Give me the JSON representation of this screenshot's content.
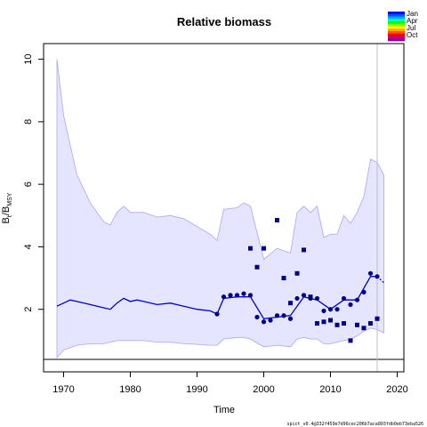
{
  "chart_data": {
    "type": "line",
    "title": "Relative biomass",
    "xlabel": "Time",
    "ylabel_main": "B",
    "ylabel_sub1": "t",
    "ylabel_sep": "/B",
    "ylabel_sub2": "MSY",
    "xlim": [
      1967,
      2021
    ],
    "ylim": [
      0,
      10.5
    ],
    "xticks": [
      1970,
      1980,
      1990,
      2000,
      2010,
      2020
    ],
    "yticks": [
      2,
      4,
      6,
      8,
      10
    ],
    "reference_line_y": 0.4,
    "vertical_line_x": 2017,
    "legend": [
      "Jan",
      "Apr",
      "Jul",
      "Oct"
    ],
    "legend_position": "top-right",
    "footer": "spict_v0.4@332f459e7d96cec206b7aca803fdb0eb73eba526",
    "colors": {
      "band": "#e5e5ff",
      "band_edge": "#a6a6ff",
      "line": "#0000cc",
      "points": "#00008b",
      "ref": "#000000",
      "vline": "#bfbfbf"
    },
    "series": [
      {
        "role": "estimate",
        "x": [
          1969,
          1970,
          1971,
          1972,
          1974,
          1976,
          1977,
          1978,
          1979,
          1980,
          1981,
          1982,
          1984,
          1986,
          1988,
          1990,
          1992,
          1993,
          1994,
          1996,
          1998,
          2000,
          2002,
          2004,
          2006,
          2008,
          2010,
          2012,
          2014,
          2016,
          2017
        ],
        "y": [
          2.1,
          2.2,
          2.3,
          2.25,
          2.15,
          2.05,
          2.0,
          2.2,
          2.35,
          2.25,
          2.3,
          2.25,
          2.15,
          2.2,
          2.1,
          2.0,
          1.95,
          1.85,
          2.35,
          2.4,
          2.4,
          1.7,
          1.75,
          1.8,
          2.4,
          2.3,
          2.0,
          2.3,
          2.3,
          3.05,
          3.05
        ]
      },
      {
        "role": "forecast",
        "x": [
          2017,
          2018
        ],
        "y": [
          3.05,
          2.85
        ]
      },
      {
        "role": "ci_upper",
        "x": [
          1969,
          1970,
          1972,
          1974,
          1976,
          1977,
          1978,
          1979,
          1980,
          1982,
          1984,
          1986,
          1988,
          1990,
          1992,
          1993,
          1994,
          1996,
          1997,
          1998,
          2000,
          2002,
          2004,
          2005,
          2006,
          2007,
          2008,
          2009,
          2010,
          2011,
          2012,
          2013,
          2014,
          2015,
          2016,
          2017,
          2018
        ],
        "y": [
          10.0,
          8.2,
          6.3,
          5.4,
          4.8,
          4.7,
          5.1,
          5.3,
          5.1,
          5.1,
          4.95,
          5.0,
          4.9,
          4.65,
          4.4,
          4.2,
          5.2,
          5.25,
          5.4,
          5.3,
          3.6,
          3.95,
          3.8,
          5.1,
          5.3,
          5.1,
          5.3,
          4.3,
          4.4,
          4.4,
          5.0,
          4.75,
          5.1,
          5.6,
          6.8,
          6.7,
          6.3
        ]
      },
      {
        "role": "ci_lower",
        "x": [
          1969,
          1970,
          1972,
          1974,
          1976,
          1977,
          1978,
          1979,
          1980,
          1982,
          1984,
          1986,
          1988,
          1990,
          1992,
          1993,
          1994,
          1996,
          1997,
          1998,
          2000,
          2002,
          2004,
          2005,
          2006,
          2007,
          2008,
          2009,
          2010,
          2011,
          2012,
          2013,
          2014,
          2015,
          2016,
          2017,
          2018
        ],
        "y": [
          0.45,
          0.7,
          0.85,
          0.9,
          0.9,
          0.95,
          1.0,
          1.0,
          1.0,
          1.0,
          0.95,
          0.95,
          0.9,
          0.88,
          0.85,
          0.85,
          1.05,
          1.1,
          1.1,
          1.05,
          0.8,
          0.85,
          0.8,
          1.05,
          1.1,
          1.05,
          1.05,
          0.9,
          0.9,
          0.95,
          1.0,
          1.05,
          1.15,
          1.3,
          1.4,
          1.35,
          1.25
        ]
      },
      {
        "role": "observations_index1",
        "x": [
          1993,
          1994,
          1995,
          1996,
          1997,
          1998,
          1999,
          2000,
          2001,
          2002,
          2003,
          2004,
          2005,
          2006,
          2007,
          2008,
          2009,
          2010,
          2011,
          2012,
          2013,
          2014,
          2015,
          2016,
          2017
        ],
        "y": [
          1.85,
          2.4,
          2.45,
          2.45,
          2.5,
          2.45,
          1.75,
          1.6,
          1.65,
          1.8,
          1.8,
          1.7,
          2.35,
          2.45,
          2.35,
          2.35,
          1.95,
          2.0,
          2.0,
          2.35,
          2.15,
          2.3,
          2.55,
          3.15,
          3.05
        ]
      },
      {
        "role": "observations_index2",
        "x": [
          1998,
          1999,
          2000,
          2002,
          2003,
          2004,
          2005,
          2006,
          2007,
          2008,
          2009,
          2010,
          2011,
          2012,
          2013,
          2014,
          2015,
          2016,
          2017
        ],
        "y": [
          3.95,
          3.35,
          3.95,
          4.85,
          3.0,
          2.2,
          3.15,
          3.9,
          2.4,
          1.55,
          1.6,
          1.65,
          1.5,
          1.55,
          1.0,
          1.5,
          1.4,
          1.55,
          1.7
        ]
      }
    ]
  }
}
